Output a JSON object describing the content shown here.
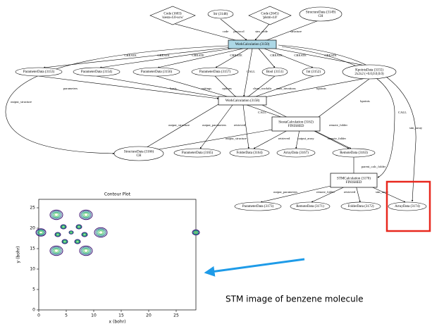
{
  "nodes": [
    {
      "lines": [
        "Code (1603)",
        "'siesta-4.0-ucw'"
      ]
    },
    {
      "lines": [
        "Str (3148)"
      ]
    },
    {
      "lines": [
        "Code (2645)",
        "'plstm-4.0'"
      ]
    },
    {
      "lines": [
        "StructureData (3149)",
        "CH"
      ]
    },
    {
      "lines": [
        "WorkCalculation (3150)"
      ]
    },
    {
      "lines": [
        "ParameterData (3153)"
      ]
    },
    {
      "lines": [
        "ParameterData (3154)"
      ]
    },
    {
      "lines": [
        "ParameterData (3156)"
      ]
    },
    {
      "lines": [
        "ParameterData (3157)"
      ]
    },
    {
      "lines": [
        "Bool (3151)"
      ]
    },
    {
      "lines": [
        "Int (3152)"
      ]
    },
    {
      "lines": [
        "KpointsData (3155)",
        "2x2x2 (+0.0,0.0,0.0)"
      ]
    },
    {
      "lines": [
        "WorkCalculation (3158)"
      ]
    },
    {
      "lines": [
        "SiestaCalculation (3162)",
        "FINISHED"
      ]
    },
    {
      "lines": [
        "StructureData (3166)",
        "CH"
      ]
    },
    {
      "lines": [
        "ParameterData (3165)"
      ]
    },
    {
      "lines": [
        "FolderData (3164)"
      ]
    },
    {
      "lines": [
        "ArrayData (3167)"
      ]
    },
    {
      "lines": [
        "RemoteData (3163)"
      ]
    },
    {
      "lines": [
        "STMCalculation (3170)",
        "FINISHED"
      ]
    },
    {
      "lines": [
        "ParameterData (3173)"
      ]
    },
    {
      "lines": [
        "RemoteData (3171)"
      ]
    },
    {
      "lines": [
        "FolderData (3172)"
      ]
    },
    {
      "lines": [
        "ArrayData (3174)"
      ]
    }
  ],
  "edges": [
    {
      "label": "code"
    },
    {
      "label": "protocol"
    },
    {
      "label": "stm_code"
    },
    {
      "label": "structure"
    },
    {
      "label": "CREATE"
    },
    {
      "label": "CREATE"
    },
    {
      "label": "CREATE"
    },
    {
      "label": "CREATE"
    },
    {
      "label": "CALL"
    },
    {
      "label": "CREATE"
    },
    {
      "label": "CREATE"
    },
    {
      "label": "CREATE"
    },
    {
      "label": "CALL"
    },
    {
      "label": "stm_array"
    },
    {
      "label": "output_structure"
    },
    {
      "label": "parameters"
    },
    {
      "label": "basis"
    },
    {
      "label": "settings"
    },
    {
      "label": "options"
    },
    {
      "label": "clean_workdir"
    },
    {
      "label": "max_iterations"
    },
    {
      "label": "kpoints"
    },
    {
      "label": "kpoints"
    },
    {
      "label": "CALL"
    },
    {
      "label": "output_structure"
    },
    {
      "label": "output_parameters"
    },
    {
      "label": "retrieved"
    },
    {
      "label": "remote_folder"
    },
    {
      "label": "output_structure"
    },
    {
      "label": "retrieved"
    },
    {
      "label": "output_array"
    },
    {
      "label": "remote_folder"
    },
    {
      "label": "parent_calc_folder"
    },
    {
      "label": "output_parameters"
    },
    {
      "label": "remote_folder"
    },
    {
      "label": "retrieved"
    },
    {
      "label": "stm_array"
    }
  ],
  "plot": {
    "title": "Contour Plot",
    "xlabel": "x (bohr)",
    "ylabel": "y (bohr)",
    "xticks": [
      0,
      5,
      10,
      15,
      20,
      25
    ],
    "yticks": [
      0,
      5,
      10,
      15,
      20,
      25
    ]
  },
  "caption": "STM image of benzene molecule"
}
